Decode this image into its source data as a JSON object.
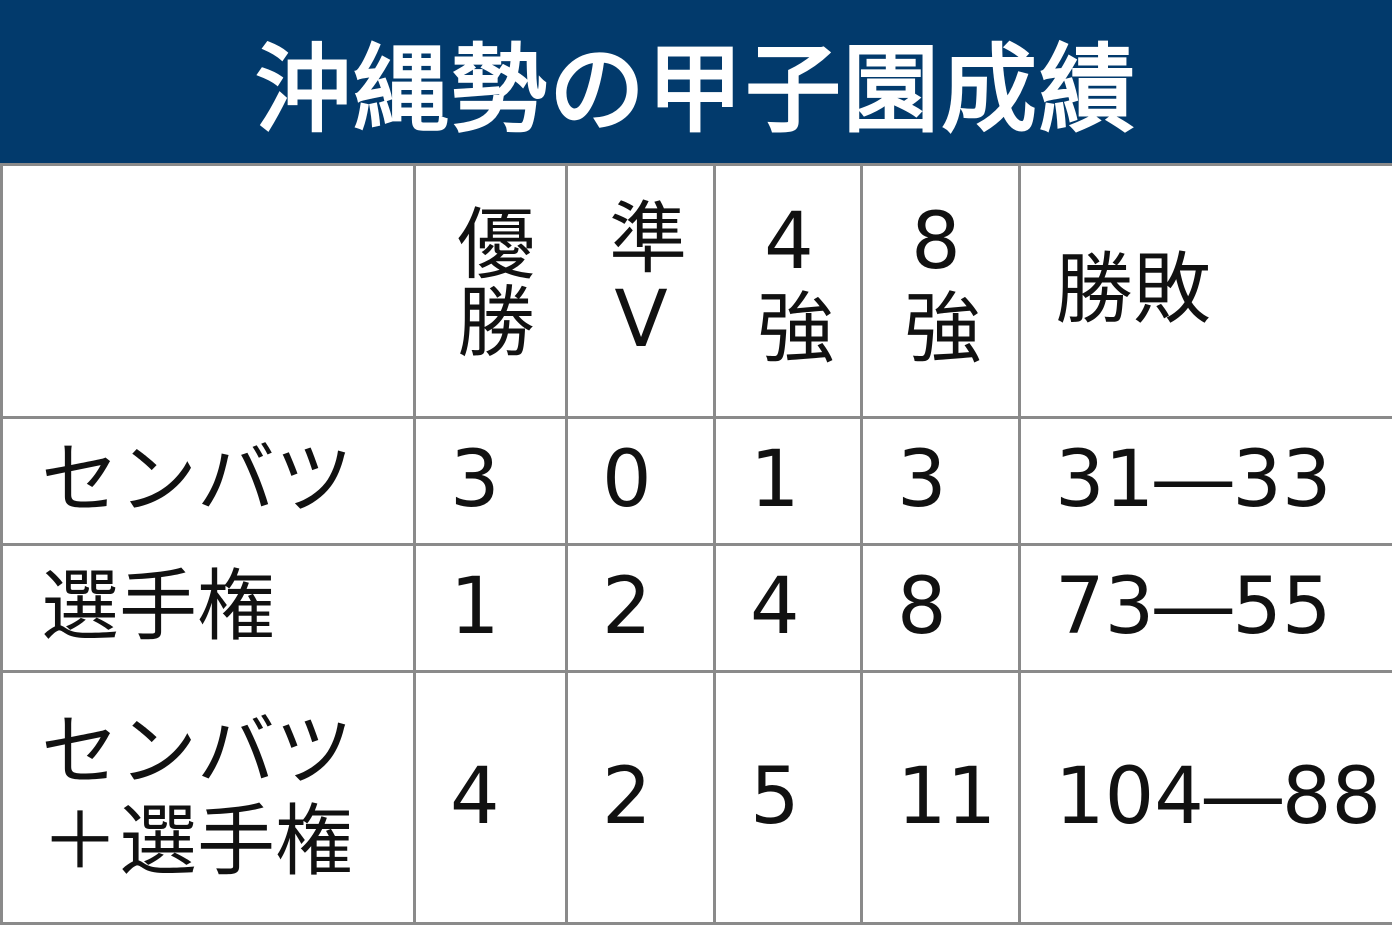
{
  "title": "沖縄勢の甲子園成績",
  "colors": {
    "header_bg": "#023a6c",
    "header_text": "#ffffff",
    "grid": "#8a8a8a"
  },
  "chart_data": {
    "type": "table",
    "title": "沖縄勢の甲子園成績",
    "columns": [
      "",
      "優勝",
      "準V",
      "4強",
      "8強",
      "勝敗"
    ],
    "rows": [
      {
        "label": "センバツ",
        "values": [
          "3",
          "0",
          "1",
          "3",
          "31―33"
        ]
      },
      {
        "label": "選手権",
        "values": [
          "1",
          "2",
          "4",
          "8",
          "73―55"
        ]
      },
      {
        "label": "センバツ＋選手権",
        "values": [
          "4",
          "2",
          "5",
          "11",
          "104―88"
        ]
      }
    ]
  }
}
